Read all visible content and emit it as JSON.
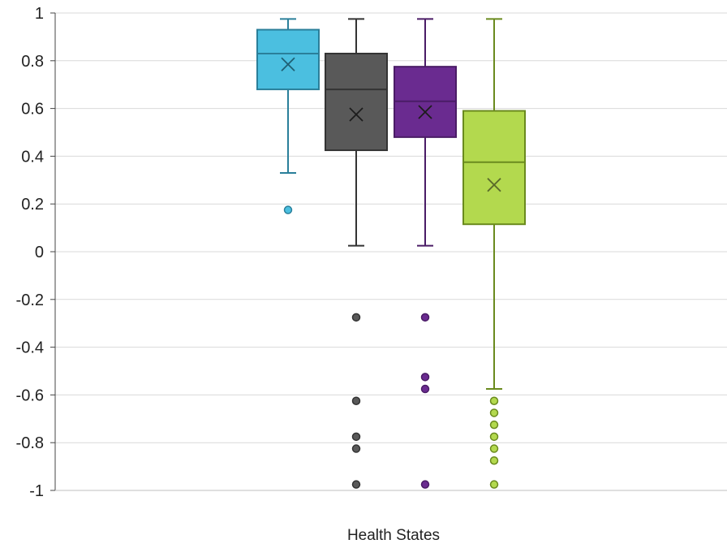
{
  "chart_data": {
    "type": "boxplot",
    "xlabel": "Health States",
    "ylabel": "",
    "ylim": [
      -1,
      1
    ],
    "yticks": [
      {
        "value": 1,
        "label": "1"
      },
      {
        "value": 0.8,
        "label": "0.8"
      },
      {
        "value": 0.6,
        "label": "0.6"
      },
      {
        "value": 0.4,
        "label": "0.4"
      },
      {
        "value": 0.2,
        "label": "0.2"
      },
      {
        "value": 0,
        "label": "0"
      },
      {
        "value": -0.2,
        "label": "-0.2"
      },
      {
        "value": -0.4,
        "label": "-0.4"
      },
      {
        "value": -0.6,
        "label": "-0.6"
      },
      {
        "value": -0.8,
        "label": "-0.8"
      },
      {
        "value": -1,
        "label": "-1"
      }
    ],
    "grid": true,
    "series": [
      {
        "color": "#4bbfe0",
        "stroke": "#2a7f9a",
        "whisker_low": 0.33,
        "q1": 0.68,
        "median": 0.83,
        "q3": 0.93,
        "whisker_high": 0.975,
        "mean": 0.785,
        "outliers": [
          0.175
        ]
      },
      {
        "color": "#595959",
        "stroke": "#333333",
        "whisker_low": 0.025,
        "q1": 0.425,
        "median": 0.68,
        "q3": 0.83,
        "whisker_high": 0.975,
        "mean": 0.575,
        "outliers": [
          -0.275,
          -0.625,
          -0.775,
          -0.825,
          -0.975
        ]
      },
      {
        "color": "#6a2b90",
        "stroke": "#4a1c66",
        "whisker_low": 0.025,
        "q1": 0.48,
        "median": 0.63,
        "q3": 0.775,
        "whisker_high": 0.975,
        "mean": 0.585,
        "outliers": [
          -0.275,
          -0.525,
          -0.575,
          -0.975
        ]
      },
      {
        "color": "#b3d94e",
        "stroke": "#6a8a1e",
        "whisker_low": -0.575,
        "q1": 0.115,
        "median": 0.375,
        "q3": 0.59,
        "whisker_high": 0.975,
        "mean": 0.28,
        "outliers": [
          -0.625,
          -0.675,
          -0.725,
          -0.775,
          -0.825,
          -0.875,
          -0.975
        ]
      }
    ]
  }
}
